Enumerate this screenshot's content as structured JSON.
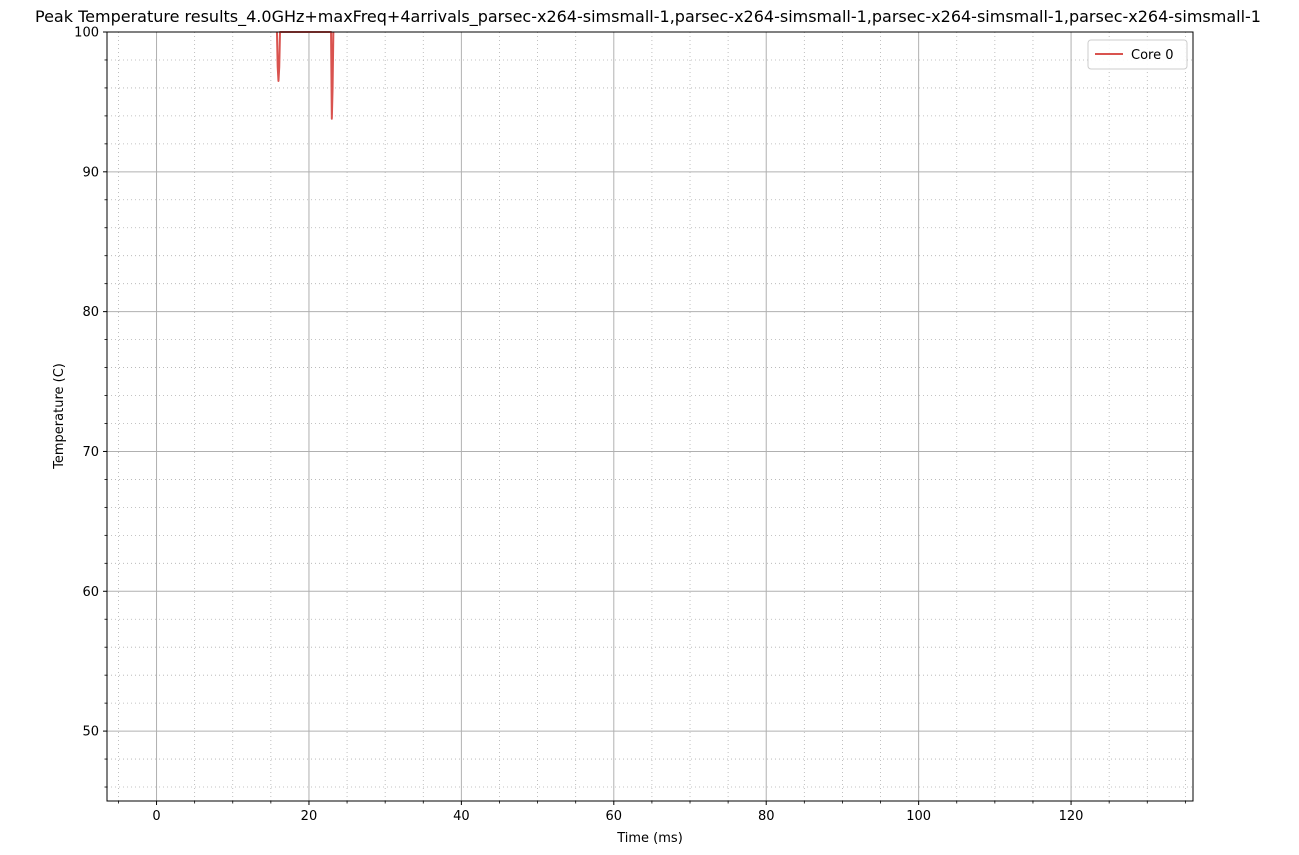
{
  "chart_data": {
    "type": "line",
    "title": "Peak Temperature results_4.0GHz+maxFreq+4arrivals_parsec-x264-simsmall-1,parsec-x264-simsmall-1,parsec-x264-simsmall-1,parsec-x264-simsmall-1",
    "xlabel": "Time (ms)",
    "ylabel": "Temperature (C)",
    "xlim": [
      -6.5,
      136
    ],
    "ylim": [
      45,
      100
    ],
    "xticks": [
      0,
      20,
      40,
      60,
      80,
      100,
      120
    ],
    "yticks": [
      50,
      60,
      70,
      80,
      90,
      100
    ],
    "x_minor_step": 5,
    "y_minor_step": 2,
    "grid": {
      "major": true,
      "minor": true
    },
    "legend": {
      "position": "top-right",
      "entries": [
        "Core 0"
      ]
    },
    "series": [
      {
        "name": "Core 0",
        "color": "#d9534f",
        "x": [
          15.8,
          15.9,
          16.0,
          16.1,
          16.2,
          22.9,
          23.0,
          23.1,
          23.2
        ],
        "y": [
          100,
          97.5,
          96.5,
          97.5,
          100,
          100,
          93.8,
          96,
          100
        ]
      }
    ]
  }
}
